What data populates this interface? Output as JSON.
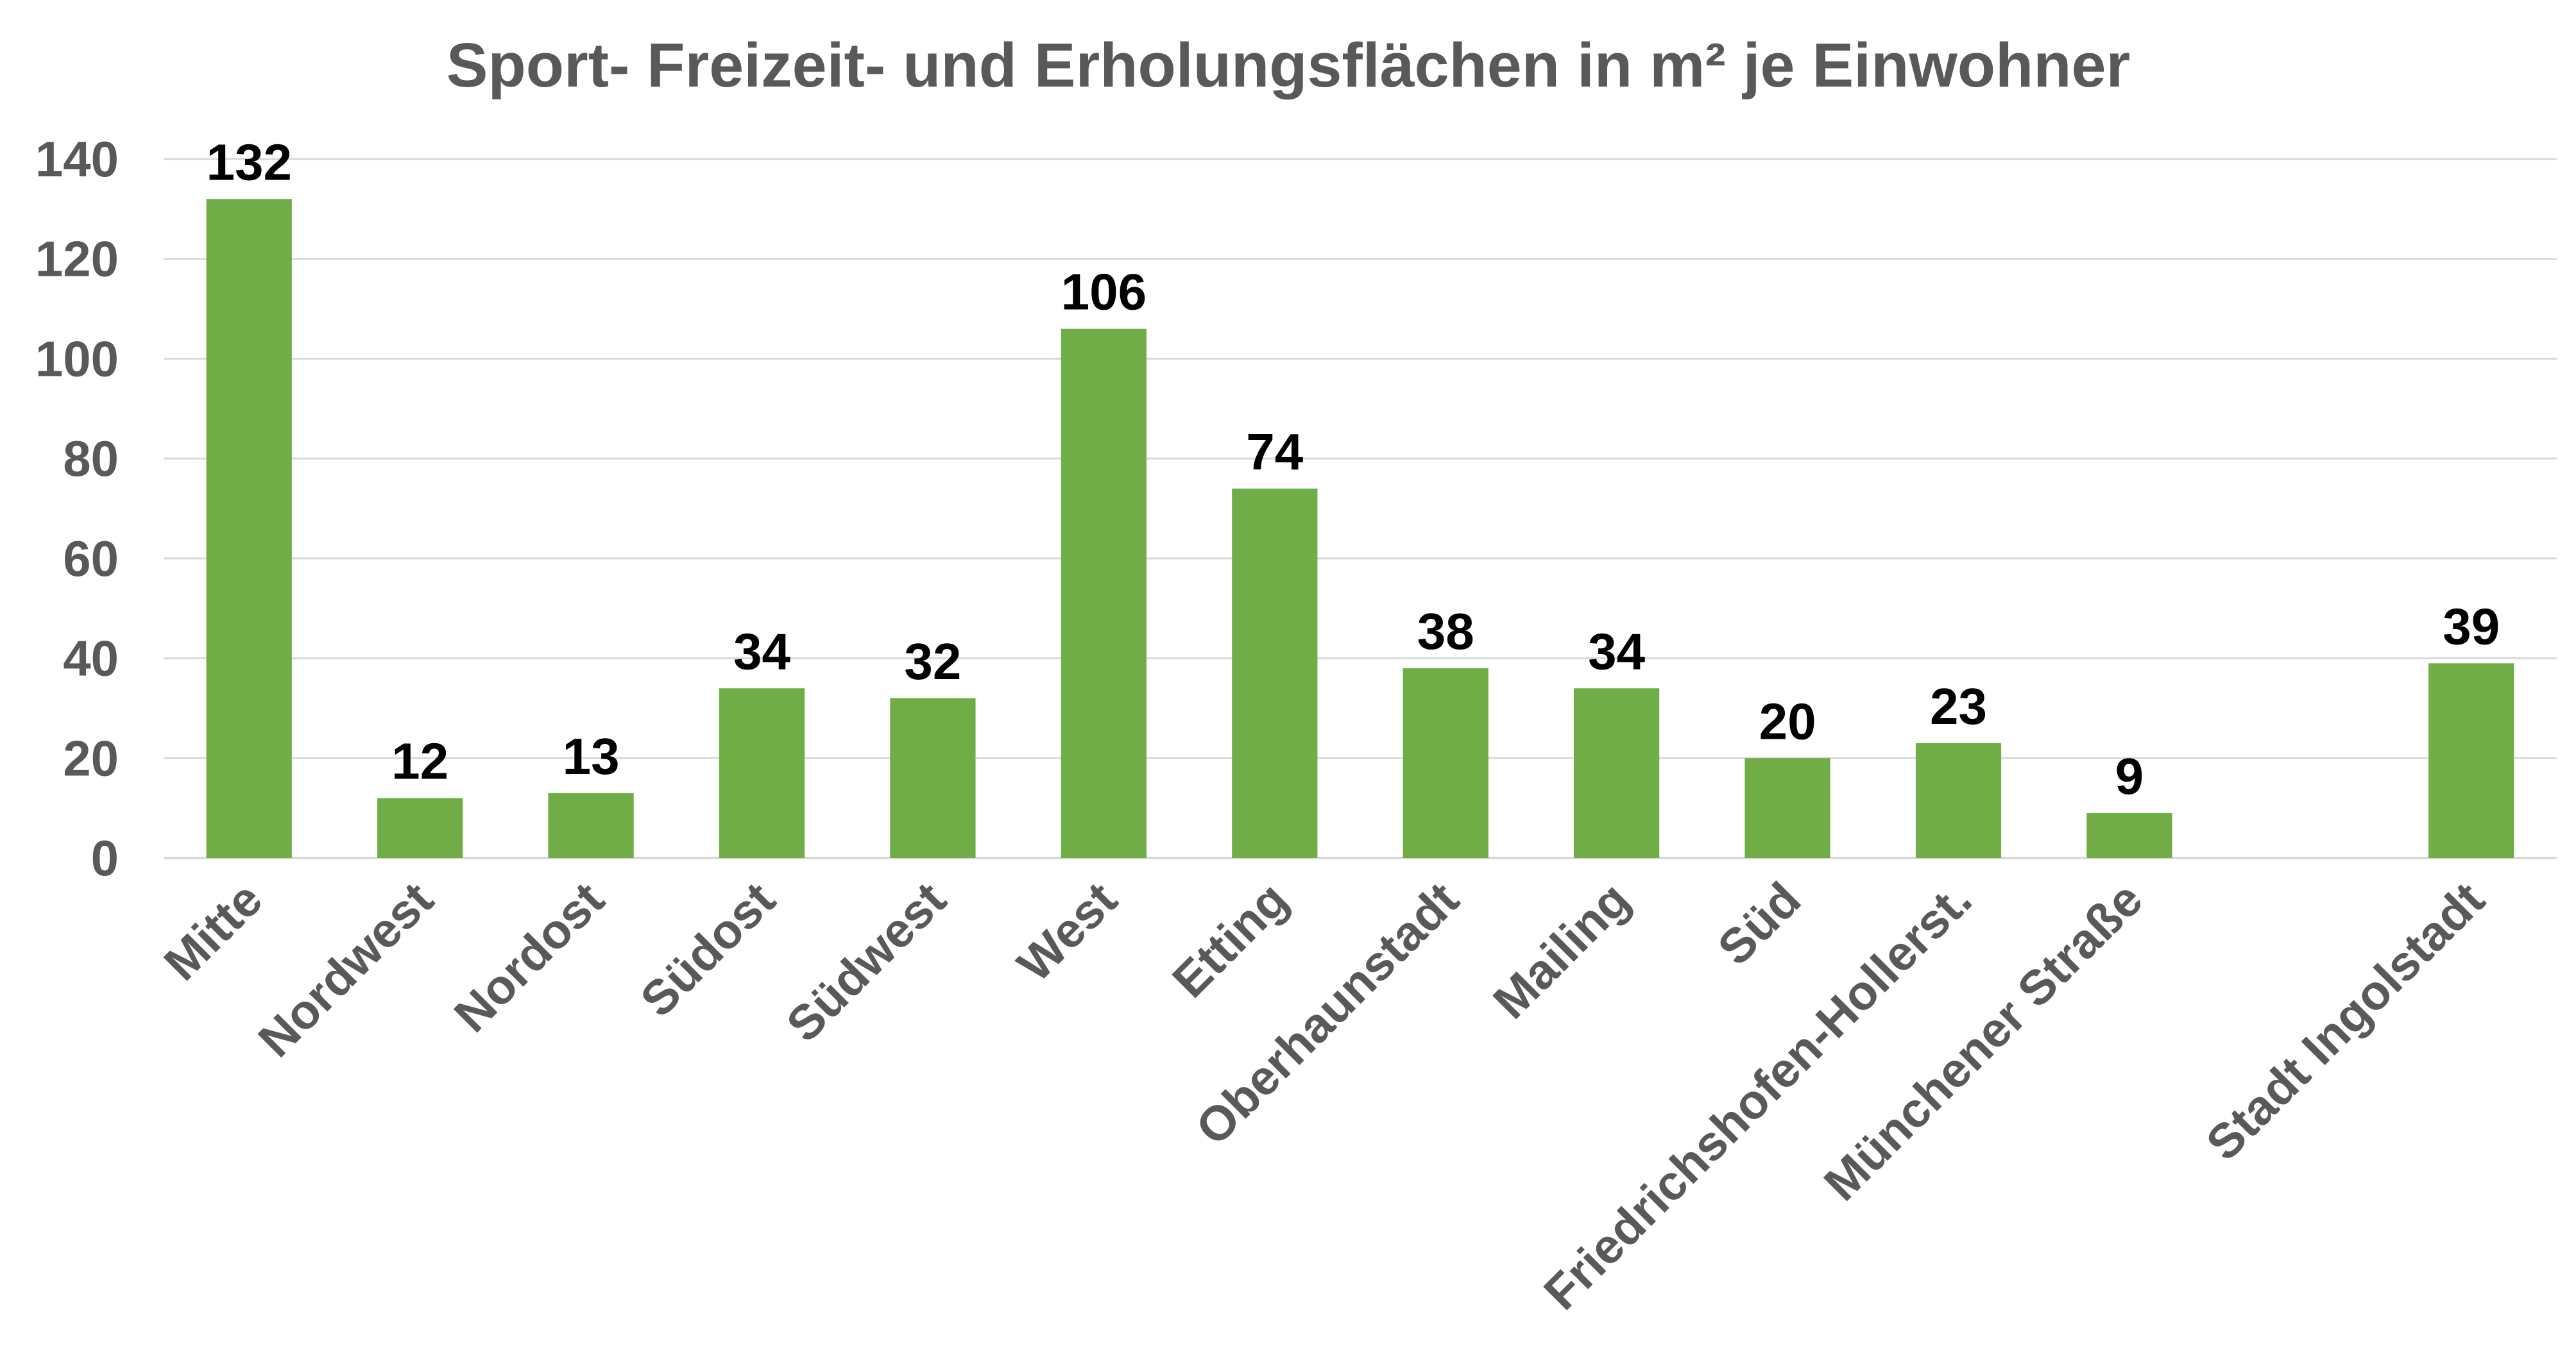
{
  "chart_data": {
    "type": "bar",
    "title": "Sport- Freizeit- und Erholungsflächen in m² je Einwohner",
    "xlabel": "",
    "ylabel": "",
    "ylim": [
      0,
      140
    ],
    "yticks": [
      0,
      20,
      40,
      60,
      80,
      100,
      120,
      140
    ],
    "grid": true,
    "legend": "none",
    "bar_color": "#70ad47",
    "categories": [
      "Mitte",
      "Nordwest",
      "Nordost",
      "Südost",
      "Südwest",
      "West",
      "Etting",
      "Oberhaunstadt",
      "Mailing",
      "Süd",
      "Friedrichshofen-Hollerst.",
      "Münchener Straße",
      "",
      "Stadt Ingolstadt"
    ],
    "values": [
      132,
      12,
      13,
      34,
      32,
      106,
      74,
      38,
      34,
      20,
      23,
      9,
      null,
      39
    ],
    "data_labels": [
      "132",
      "12",
      "13",
      "34",
      "32",
      "106",
      "74",
      "38",
      "34",
      "20",
      "23",
      "9",
      "",
      "39"
    ]
  }
}
